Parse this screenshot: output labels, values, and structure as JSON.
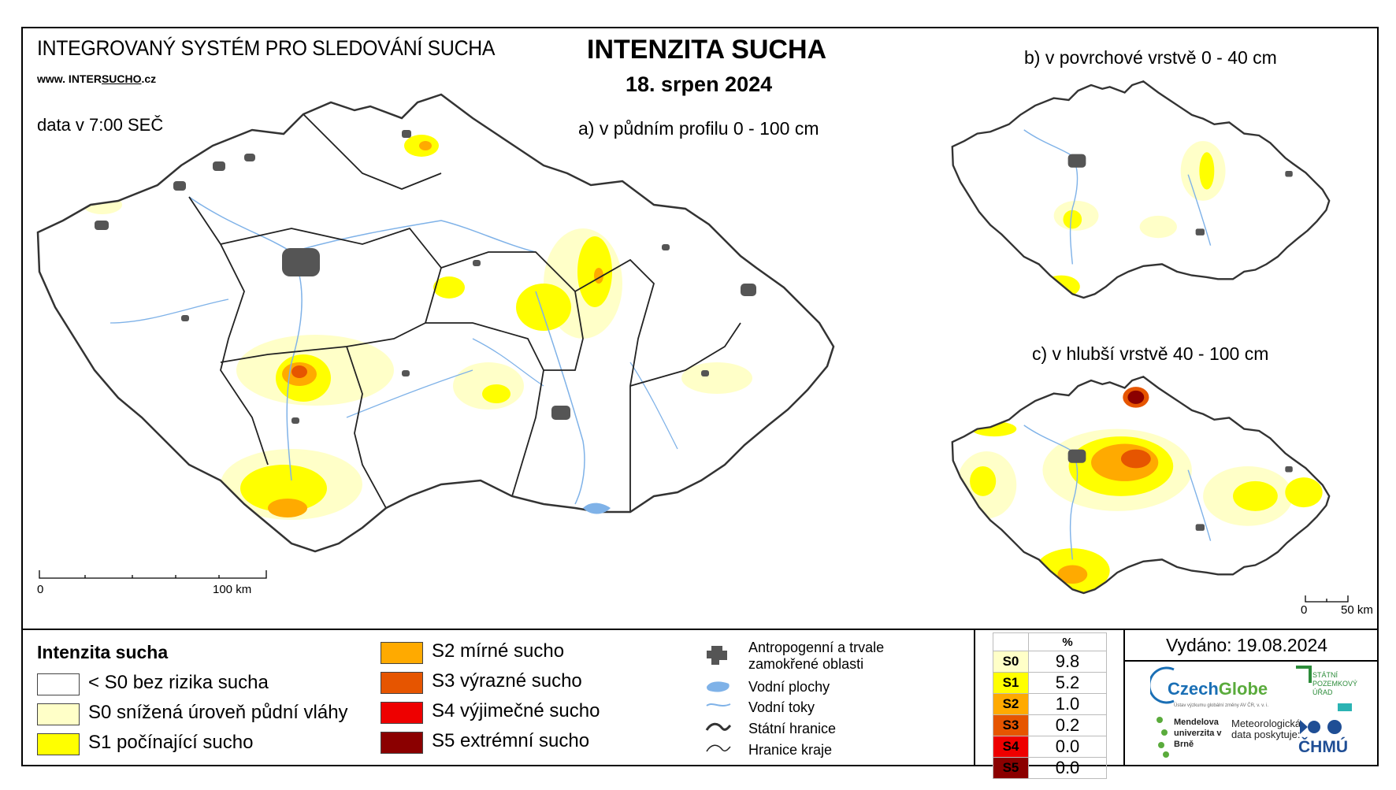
{
  "header": {
    "system_title": "INTEGROVANÝ SYSTÉM PRO SLEDOVÁNÍ SUCHA",
    "url_prefix": "www. INTER",
    "url_highlight": "SUCHO",
    "url_suffix": ".cz",
    "data_time": "data v 7:00 SEČ",
    "title": "INTENZITA SUCHA",
    "date": "18. srpen 2024"
  },
  "maps": {
    "main_caption": "a) v půdním profilu 0 - 100 cm",
    "surface_caption": "b) v povrchové vrstvě 0 - 40 cm",
    "deep_caption": "c) v hlubší vrstvě 40 - 100 cm",
    "main_scale": {
      "start": "0",
      "end": "100 km"
    },
    "small_scale": {
      "start": "0",
      "end": "50 km"
    }
  },
  "legend": {
    "title": "Intenzita sucha",
    "classes": [
      {
        "label": "< S0 bez rizika sucha",
        "color": "#ffffff"
      },
      {
        "label": "S0 snížená úroveň půdní vláhy",
        "color": "#ffffc8"
      },
      {
        "label": "S1 počínající sucho",
        "color": "#ffff00"
      },
      {
        "label": "S2 mírné sucho",
        "color": "#ffaa00"
      },
      {
        "label": "S3 výrazné sucho",
        "color": "#e65500"
      },
      {
        "label": "S4 výjimečné sucho",
        "color": "#ee0000"
      },
      {
        "label": "S5 extrémní sucho",
        "color": "#8b0000"
      }
    ],
    "symbols": [
      {
        "label": "Antropogenní a trvale zamokřené oblasti",
        "icon": "urban-area-icon"
      },
      {
        "label": "Vodní plochy",
        "icon": "water-body-icon"
      },
      {
        "label": "Vodní toky",
        "icon": "river-icon"
      },
      {
        "label": "Státní hranice",
        "icon": "state-border-icon"
      },
      {
        "label": "Hranice kraje",
        "icon": "region-border-icon"
      }
    ]
  },
  "stats": {
    "header": "%",
    "rows": [
      {
        "cls": "S0",
        "value": "9.8",
        "color": "#ffffc8"
      },
      {
        "cls": "S1",
        "value": "5.2",
        "color": "#ffff00"
      },
      {
        "cls": "S2",
        "value": "1.0",
        "color": "#ffaa00"
      },
      {
        "cls": "S3",
        "value": "0.2",
        "color": "#e65500"
      },
      {
        "cls": "S4",
        "value": "0.0",
        "color": "#ee0000"
      },
      {
        "cls": "S5",
        "value": "0.0",
        "color": "#8b0000"
      }
    ]
  },
  "footer": {
    "issued": "Vydáno: 19.08.2024",
    "czechglobe_a": "Czech",
    "czechglobe_b": "Globe",
    "czechglobe_sub": "Ústav výzkumu globální změny AV ČR, v. v. i.",
    "mendel": "Mendelova univerzita v Brně",
    "meteo": "Meteorologická data poskytuje:",
    "chmu": "ČHMÚ",
    "spu": "STÁTNÍ POZEMKOVÝ ÚŘAD"
  }
}
